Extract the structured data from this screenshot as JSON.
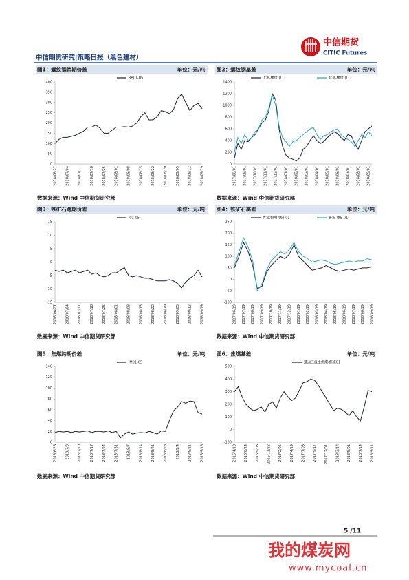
{
  "header": {
    "logo_cn": "中信期货",
    "logo_en": "CITIC Futures",
    "title": "中信期货研究|策略日报（黑色建材）"
  },
  "chart_data": [
    {
      "type": "line",
      "title": "图1：螺纹钢跨期价差",
      "unit": "单位：元/吨",
      "source": "数据来源：Wind 中信期货研究部",
      "categories": [
        "2018/06/27",
        null,
        null,
        "2018/07/04",
        null,
        null,
        "2018/07/11",
        null,
        null,
        "2018/07/18",
        null,
        null,
        "2018/07/25",
        null,
        null,
        "2018/08/01",
        null,
        null,
        "2018/08/08",
        null,
        null,
        "2018/08/15",
        null,
        null,
        "2018/08/22",
        null,
        null,
        "2018/08/29",
        null,
        null,
        "2018/09/05",
        null,
        null,
        "2018/09/12",
        null,
        null,
        "2018/09/19"
      ],
      "series": [
        {
          "name": "RB01-05",
          "color": "#1c1c3c",
          "values": [
            100,
            120,
            130,
            130,
            135,
            140,
            150,
            160,
            180,
            180,
            190,
            175,
            150,
            150,
            165,
            180,
            180,
            182,
            180,
            185,
            200,
            230,
            250,
            215,
            215,
            230,
            260,
            255,
            245,
            265,
            320,
            340,
            300,
            260,
            285,
            295,
            270
          ]
        }
      ],
      "ylim": [
        0,
        400
      ],
      "yticks": [
        0,
        50,
        100,
        150,
        200,
        250,
        300,
        350,
        400
      ]
    },
    {
      "type": "line",
      "title": "图2：螺纹钢基差",
      "unit": "单位：元/吨",
      "source": "数据来源：Wind 中信期货研究部",
      "categories": [
        "2017/08/01",
        null,
        null,
        "2017/09/01",
        null,
        null,
        "2017/10/01",
        null,
        null,
        "2017/11/01",
        null,
        null,
        "2017/12/01",
        null,
        null,
        "2018/01/01",
        null,
        null,
        "2018/02/01",
        null,
        null,
        "2018/03/01",
        null,
        null,
        "2018/04/01",
        null,
        null,
        "2018/05/01",
        null,
        null,
        "2018/06/01",
        null,
        null,
        "2018/07/01",
        null,
        null,
        "2018/08/01",
        null,
        null,
        "2018/09/01",
        null
      ],
      "series": [
        {
          "name": "上海-螺纹01",
          "color": "#1c1c3c",
          "values": [
            100,
            350,
            250,
            400,
            380,
            450,
            500,
            600,
            700,
            750,
            900,
            1200,
            1100,
            600,
            300,
            150,
            100,
            80,
            50,
            100,
            250,
            300,
            400,
            480,
            400,
            350,
            380,
            450,
            500,
            550,
            520,
            450,
            400,
            500,
            480,
            350,
            250,
            400,
            550,
            600,
            650
          ]
        },
        {
          "name": "北京-螺纹01",
          "color": "#22a7c9",
          "values": [
            200,
            450,
            350,
            500,
            400,
            450,
            550,
            600,
            750,
            800,
            950,
            1180,
            1000,
            650,
            450,
            380,
            300,
            380,
            400,
            450,
            500,
            550,
            600,
            620,
            500,
            420,
            480,
            500,
            550,
            580,
            600,
            500,
            450,
            420,
            380,
            300,
            400,
            500,
            450,
            550,
            480
          ]
        }
      ],
      "ylim": [
        0,
        1400
      ],
      "yticks": [
        0,
        200,
        400,
        600,
        800,
        1000,
        1200,
        1400
      ]
    },
    {
      "type": "line",
      "title": "图3：铁矿石跨期价差",
      "unit": "单位：元/吨",
      "source": "数据来源：Wind 中信期货研究部",
      "categories": [
        "2018/06/27",
        null,
        null,
        "2018/07/04",
        null,
        null,
        "2018/07/11",
        null,
        null,
        "2018/07/18",
        null,
        null,
        "2018/07/25",
        null,
        null,
        "2018/08/01",
        null,
        null,
        "2018/08/08",
        null,
        null,
        "2018/08/15",
        null,
        null,
        "2018/08/22",
        null,
        null,
        "2018/08/29",
        null,
        null,
        "2018/09/05",
        null,
        null,
        "2018/09/12",
        null,
        null,
        "2018/09/19"
      ],
      "series": [
        {
          "name": "I01-05",
          "color": "#1c1c3c",
          "values": [
            -3,
            -3.5,
            -3,
            -4,
            -3.5,
            -3,
            -4,
            -3.5,
            -3,
            -4.5,
            -4,
            -5,
            -5.5,
            -5,
            -4,
            -4,
            -3,
            -2,
            -5,
            -5.5,
            -5,
            -5.5,
            -6,
            -6,
            -6.5,
            -7,
            -7,
            -7,
            -6.5,
            -7,
            -8,
            -9.5,
            -7.5,
            -6,
            -5,
            -3,
            -5.5
          ]
        }
      ],
      "ylim": [
        -15,
        15
      ],
      "yticks": [
        -15,
        -10,
        -5,
        0,
        5,
        10,
        15
      ]
    },
    {
      "type": "line",
      "title": "图4：铁矿石基差",
      "unit": "单位：元/吨",
      "source": "数据来源：Wind 中信期货研究部",
      "categories": [
        "2017/06/19",
        null,
        "2017/07/19",
        null,
        "2017/08/19",
        null,
        "2017/09/19",
        null,
        "2017/10/19",
        null,
        "2017/11/19",
        null,
        "2017/12/19",
        null,
        "2018/01/19",
        null,
        "2018/02/19",
        null,
        "2018/03/19",
        null,
        "2018/04/19",
        null,
        "2018/05/19",
        null,
        "2018/06/19",
        null,
        "2018/07/19",
        null,
        "2018/08/19",
        null,
        "2018/09/19"
      ],
      "series": [
        {
          "name": "青岛港PB-铁矿01",
          "color": "#1c1c3c",
          "values": [
            50,
            100,
            160,
            120,
            60,
            -40,
            -30,
            30,
            60,
            80,
            100,
            90,
            110,
            150,
            100,
            80,
            60,
            40,
            45,
            50,
            60,
            50,
            40,
            35,
            40,
            45,
            40,
            45,
            50,
            50,
            55
          ]
        },
        {
          "name": "普氏-铁矿01",
          "color": "#22a7c9",
          "values": [
            60,
            120,
            180,
            140,
            80,
            -50,
            -20,
            40,
            80,
            100,
            120,
            110,
            130,
            160,
            120,
            100,
            90,
            75,
            80,
            85,
            80,
            70,
            65,
            70,
            75,
            80,
            75,
            80,
            80,
            90,
            85
          ]
        }
      ],
      "ylim": [
        -100,
        250
      ],
      "yticks": [
        -100,
        -50,
        0,
        50,
        100,
        150,
        200,
        250
      ]
    },
    {
      "type": "line",
      "title": "图5：焦煤跨期价差",
      "unit": "单位：元/吨",
      "source": "数据来源：Wind 中信期货研究部",
      "categories": [
        "2018/6/26",
        null,
        null,
        "2018/7/3",
        null,
        null,
        "2018/7/10",
        null,
        null,
        "2018/7/17",
        null,
        null,
        "2018/7/24",
        null,
        null,
        "2018/7/31",
        null,
        null,
        "2018/8/7",
        null,
        null,
        "2018/8/14",
        null,
        null,
        "2018/8/21",
        null,
        null,
        "2018/8/28",
        null,
        null,
        "2018/9/4",
        null,
        null,
        "2018/9/11",
        null,
        null,
        "2018/9/18"
      ],
      "series": [
        {
          "name": "JM01-05",
          "color": "#1c1c3c",
          "values": [
            18,
            20,
            19,
            20,
            18,
            20,
            19,
            20,
            21,
            18,
            20,
            20,
            19,
            21,
            18,
            20,
            8,
            15,
            19,
            15,
            17,
            18,
            17,
            20,
            18,
            15,
            21,
            20,
            40,
            58,
            65,
            75,
            72,
            76,
            75,
            55,
            52
          ]
        }
      ],
      "ylim": [
        0,
        140
      ],
      "yticks": [
        0,
        20,
        40,
        60,
        80,
        100,
        120,
        140
      ]
    },
    {
      "type": "line",
      "title": "图6：焦煤基差",
      "unit": "单位：元/吨",
      "source": "数据来源：Wind 中信期货研究部",
      "categories": [
        "2016/4/10",
        null,
        null,
        "2016/6/24",
        null,
        null,
        "2016/9/08",
        null,
        null,
        "2016/11/22",
        null,
        null,
        "2017/2/05",
        null,
        null,
        "2017/4/19",
        null,
        null,
        "2017/7/03",
        null,
        null,
        "2017/9/17",
        null,
        null,
        "2017/12/01",
        null,
        null,
        "2018/2/14",
        null,
        null,
        "2018/5/01",
        null,
        null,
        "2018/7/14",
        null,
        null,
        "2018/9/11"
      ],
      "series": [
        {
          "name": "澳洲二级主焦煤-焦煤01",
          "color": "#1c1c3c",
          "values": [
            300,
            340,
            260,
            200,
            170,
            150,
            160,
            180,
            140,
            200,
            220,
            170,
            250,
            300,
            260,
            230,
            250,
            310,
            370,
            380,
            400,
            390,
            350,
            300,
            250,
            200,
            150,
            170,
            160,
            140,
            110,
            150,
            100,
            70,
            180,
            310,
            300
          ]
        }
      ],
      "ylim": [
        -100,
        500
      ],
      "yticks": [
        -100,
        0,
        100,
        200,
        300,
        400,
        500
      ]
    }
  ],
  "footer": {
    "page": "5 /11"
  },
  "watermark": {
    "name": "我的煤炭网",
    "url": "www.mycoal.cn"
  }
}
